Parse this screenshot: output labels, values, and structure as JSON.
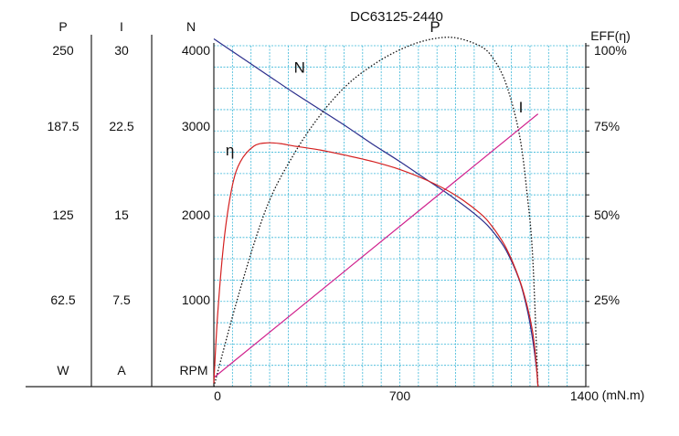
{
  "chart_data": {
    "type": "line",
    "title": "DC63125-2440",
    "xlabel": "(mN.m)",
    "xlim": [
      0,
      1400
    ],
    "x_ticks": [
      "0",
      "700",
      "1400"
    ],
    "left_axes": [
      {
        "name": "P",
        "unit": "W",
        "ticks": [
          "250",
          "187.5",
          "125",
          "62.5"
        ],
        "range": [
          0,
          250
        ]
      },
      {
        "name": "I",
        "unit": "A",
        "ticks": [
          "30",
          "22.5",
          "15",
          "7.5"
        ],
        "range": [
          0,
          30
        ]
      },
      {
        "name": "N",
        "unit": "RPM",
        "ticks": [
          "4000",
          "3000",
          "2000",
          "1000"
        ],
        "range": [
          0,
          4000
        ]
      }
    ],
    "right_axis": {
      "name": "EFF(η)",
      "ticks": [
        "100%",
        "75%",
        "50%",
        "25%"
      ],
      "range": [
        0,
        100
      ]
    },
    "grid": true,
    "series": [
      {
        "name": "N",
        "axis": "N",
        "color": "#2b2e8c",
        "style": "solid",
        "points": [
          [
            0,
            4080
          ],
          [
            100,
            3870
          ],
          [
            200,
            3660
          ],
          [
            300,
            3450
          ],
          [
            400,
            3250
          ],
          [
            500,
            3050
          ],
          [
            600,
            2840
          ],
          [
            700,
            2640
          ],
          [
            800,
            2430
          ],
          [
            900,
            2220
          ],
          [
            1000,
            1980
          ],
          [
            1050,
            1820
          ],
          [
            1100,
            1600
          ],
          [
            1150,
            1250
          ],
          [
            1180,
            900
          ],
          [
            1200,
            550
          ],
          [
            1215,
            200
          ],
          [
            1220,
            0
          ]
        ]
      },
      {
        "name": "P",
        "axis": "P",
        "color": "#111111",
        "style": "dotted",
        "points": [
          [
            0,
            0
          ],
          [
            100,
            72
          ],
          [
            200,
            132
          ],
          [
            300,
            170
          ],
          [
            400,
            199
          ],
          [
            500,
            221
          ],
          [
            600,
            236
          ],
          [
            700,
            247
          ],
          [
            800,
            254
          ],
          [
            900,
            256
          ],
          [
            1000,
            250
          ],
          [
            1050,
            241
          ],
          [
            1100,
            222
          ],
          [
            1150,
            185
          ],
          [
            1180,
            140
          ],
          [
            1200,
            95
          ],
          [
            1220,
            0
          ]
        ]
      },
      {
        "name": "I",
        "axis": "I",
        "color": "#d0208c",
        "style": "solid",
        "points": [
          [
            0,
            0.8
          ],
          [
            1220,
            24
          ]
        ]
      },
      {
        "name": "η",
        "axis": "EFF",
        "color": "#d42020",
        "style": "solid",
        "points": [
          [
            0,
            1
          ],
          [
            15,
            22
          ],
          [
            40,
            44
          ],
          [
            70,
            59
          ],
          [
            100,
            66
          ],
          [
            150,
            70.5
          ],
          [
            200,
            71.5
          ],
          [
            250,
            71.3
          ],
          [
            300,
            70.6
          ],
          [
            400,
            69.4
          ],
          [
            500,
            67.8
          ],
          [
            600,
            66
          ],
          [
            700,
            63.7
          ],
          [
            800,
            60.6
          ],
          [
            900,
            56.6
          ],
          [
            1000,
            51
          ],
          [
            1050,
            46.7
          ],
          [
            1100,
            40.7
          ],
          [
            1150,
            31.5
          ],
          [
            1180,
            23.5
          ],
          [
            1200,
            16
          ],
          [
            1212,
            8
          ],
          [
            1220,
            0
          ]
        ]
      }
    ],
    "curve_labels": [
      {
        "text": "N",
        "x": 295,
        "axis": "N",
        "y": 3660
      },
      {
        "text": "P",
        "x": 860,
        "axis": "P",
        "y": 256
      },
      {
        "text": "I",
        "x": 1190,
        "axis": "I",
        "y": 23.8
      },
      {
        "text": "η",
        "x": 95,
        "axis": "EFF",
        "y": 67
      }
    ]
  }
}
